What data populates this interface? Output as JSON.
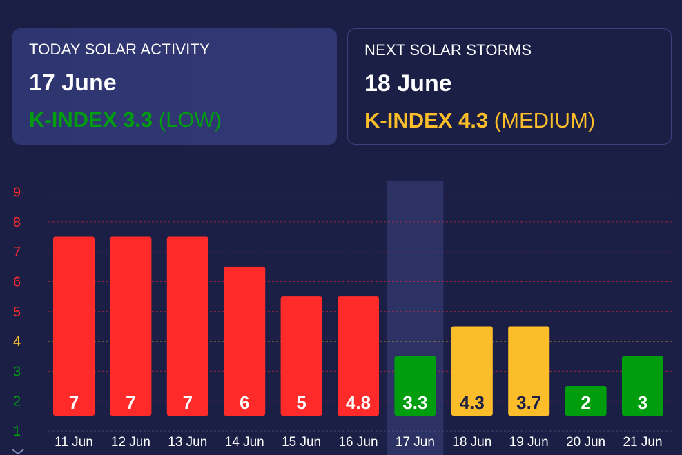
{
  "today": {
    "title": "TODAY SOLAR ACTIVITY",
    "date": "17 June",
    "kindex_label": "K-INDEX 3.3",
    "level": "(LOW)",
    "color": "#009e0f"
  },
  "next": {
    "title": "NEXT SOLAR STORMS",
    "date": "18 June",
    "kindex_label": "K-INDEX 4.3",
    "level": "(MEDIUM)",
    "color": "#fbbd2a"
  },
  "colors": {
    "low": "#009e0f",
    "medium": "#fbbd2a",
    "high": "#ff2b2b",
    "background": "#1b1f45",
    "highlight": "#2c3263"
  },
  "chart_data": {
    "type": "bar",
    "categories": [
      "11 Jun",
      "12 Jun",
      "13 Jun",
      "14 Jun",
      "15 Jun",
      "16 Jun",
      "17 Jun",
      "18 Jun",
      "19 Jun",
      "20 Jun",
      "21 Jun"
    ],
    "values": [
      7,
      7,
      7,
      6,
      5,
      4.8,
      3.3,
      4.3,
      3.7,
      2,
      3
    ],
    "value_labels": [
      "7",
      "7",
      "7",
      "6",
      "5",
      "4.8",
      "3.3",
      "4.3",
      "3.7",
      "2",
      "3"
    ],
    "bar_levels": [
      "high",
      "high",
      "high",
      "high",
      "high",
      "high",
      "low",
      "medium",
      "medium",
      "low",
      "low"
    ],
    "bar_heights": [
      7.5,
      7.5,
      7.5,
      6.5,
      5.5,
      5.5,
      3.5,
      4.5,
      4.5,
      2.5,
      3.5
    ],
    "highlight_index": 6,
    "yticks": [
      1,
      2,
      3,
      4,
      5,
      6,
      7,
      8,
      9
    ],
    "ytick_levels": [
      "low",
      "low",
      "low",
      "medium",
      "high",
      "high",
      "high",
      "high",
      "high"
    ],
    "ylim": [
      1,
      9
    ],
    "grid": true,
    "title": "",
    "xlabel": "",
    "ylabel": ""
  }
}
